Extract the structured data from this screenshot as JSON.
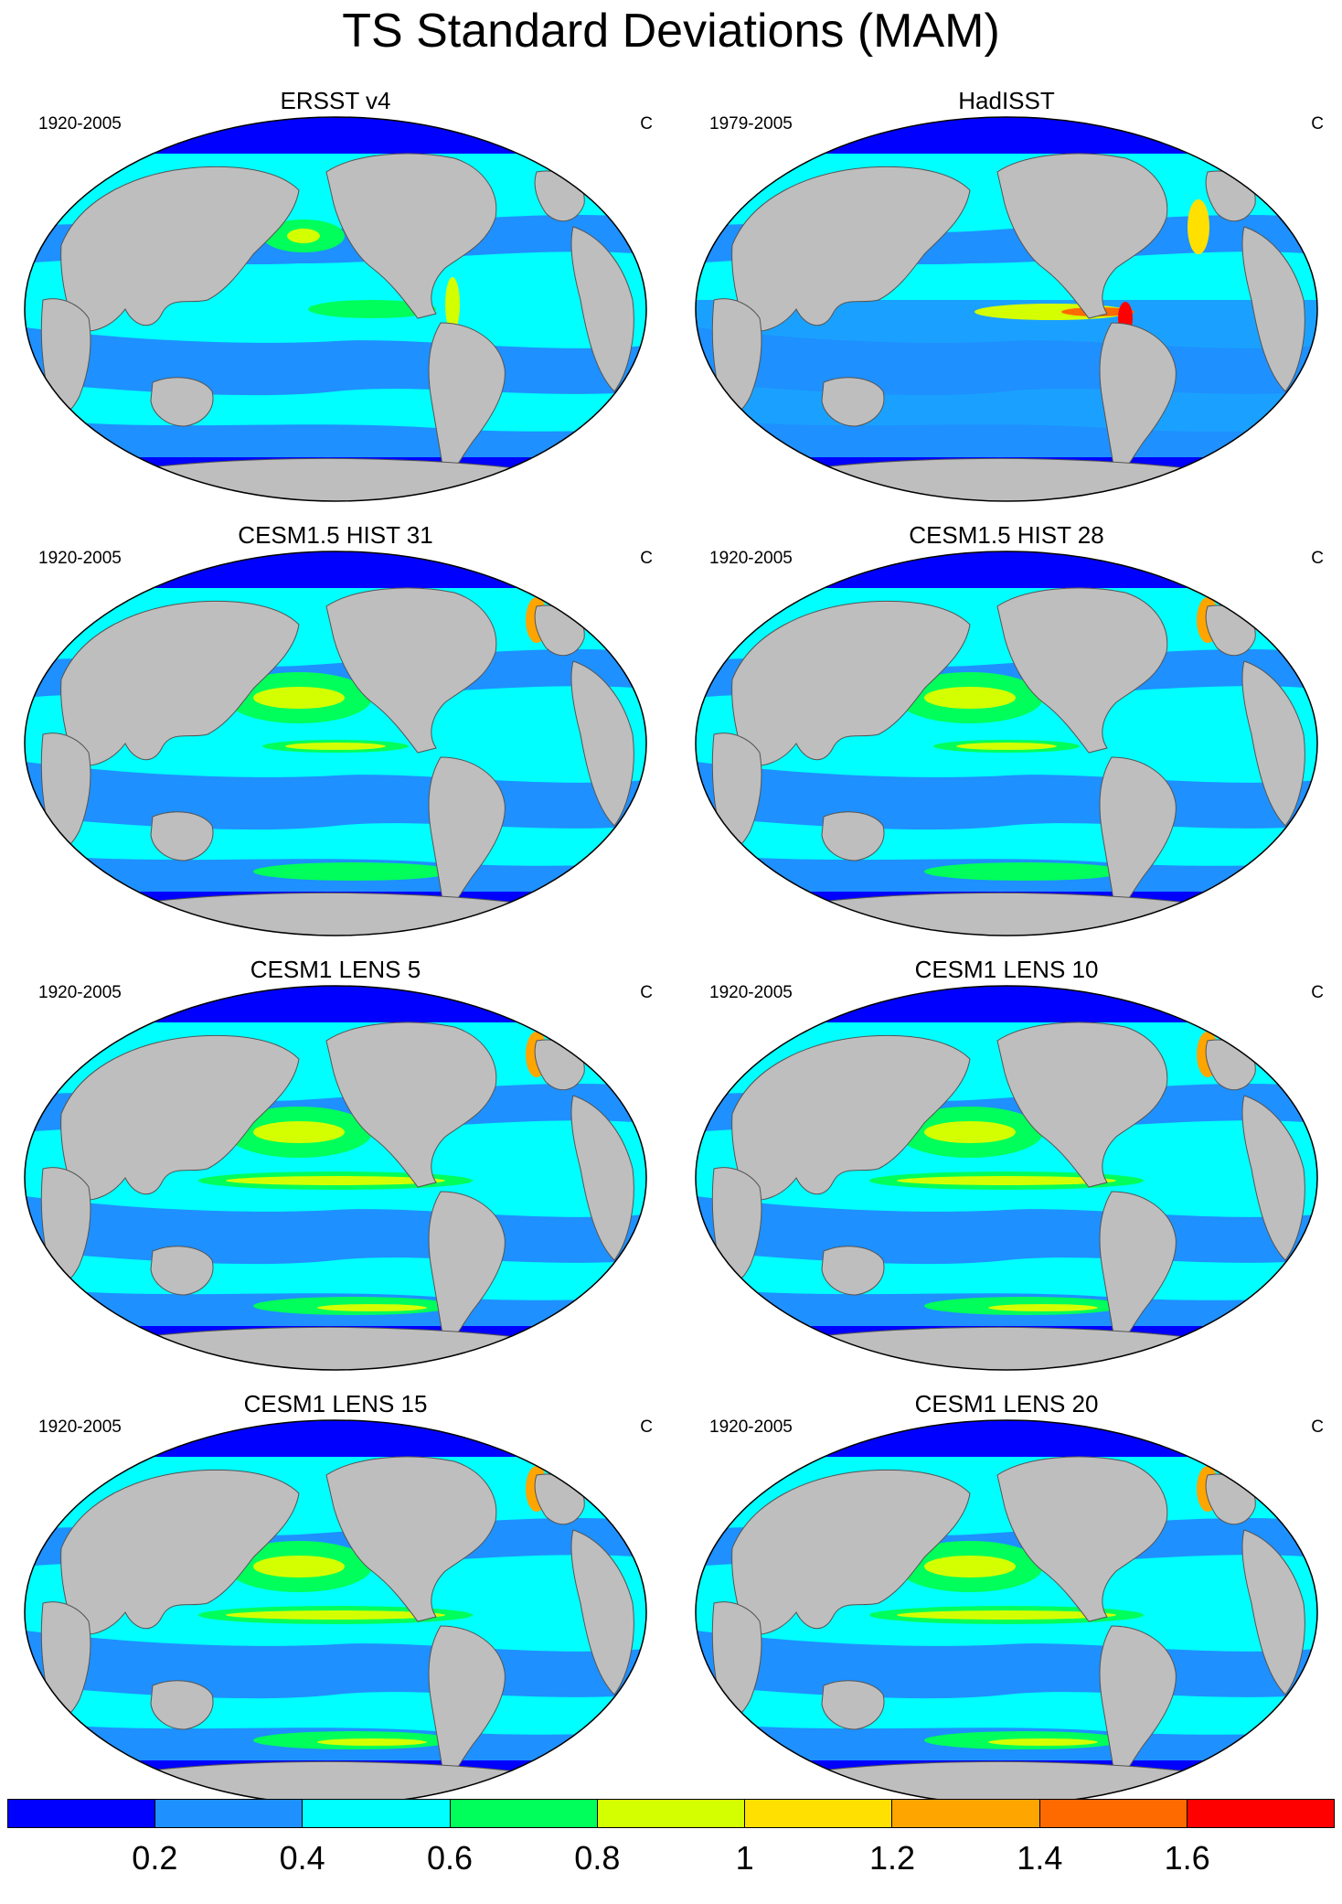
{
  "title": "TS Standard Deviations (MAM)",
  "panels": [
    {
      "title": "ERSST v4",
      "period": "1920-2005",
      "units": "C",
      "style": "obs"
    },
    {
      "title": "HadISST",
      "period": "1979-2005",
      "units": "C",
      "style": "obs2"
    },
    {
      "title": "CESM1.5 HIST 31",
      "period": "1920-2005",
      "units": "C",
      "style": "model"
    },
    {
      "title": "CESM1.5 HIST 28",
      "period": "1920-2005",
      "units": "C",
      "style": "model"
    },
    {
      "title": "CESM1 LENS 5",
      "period": "1920-2005",
      "units": "C",
      "style": "lens"
    },
    {
      "title": "CESM1 LENS 10",
      "period": "1920-2005",
      "units": "C",
      "style": "lens"
    },
    {
      "title": "CESM1 LENS 15",
      "period": "1920-2005",
      "units": "C",
      "style": "lens"
    },
    {
      "title": "CESM1 LENS 20",
      "period": "1920-2005",
      "units": "C",
      "style": "lens"
    }
  ],
  "colorbar": {
    "colors": [
      "#0000ff",
      "#1e90ff",
      "#00ffff",
      "#00ff5a",
      "#d4ff00",
      "#ffe000",
      "#ffa500",
      "#ff6a00",
      "#ff0000"
    ],
    "labels": [
      "0.2",
      "0.4",
      "0.6",
      "0.8",
      "1",
      "1.2",
      "1.4",
      "1.6"
    ]
  },
  "map_colors": {
    "land": "#bebebe",
    "ocean_low": "#1e90ff",
    "ocean_mid": "#00ffff",
    "ice": "#0000ff"
  }
}
